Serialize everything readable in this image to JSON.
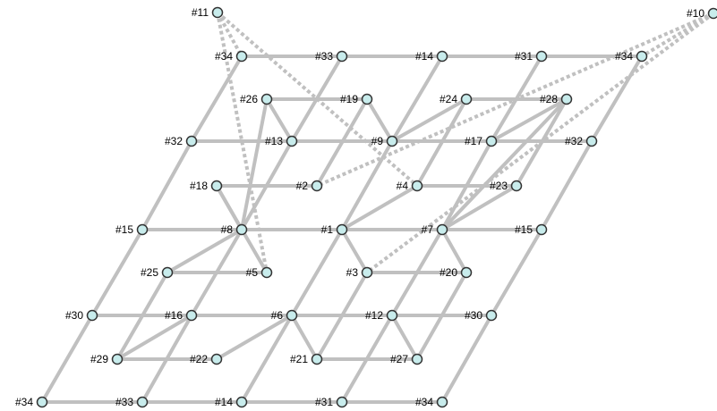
{
  "colors": {
    "edge": "#c0c0c0",
    "node_fill": "#c8ecec",
    "node_stroke": "#333333"
  },
  "nodes": [
    {
      "id": "a",
      "label": "#34"
    },
    {
      "id": "b",
      "label": "#33"
    },
    {
      "id": "c",
      "label": "#14"
    },
    {
      "id": "d",
      "label": "#31"
    },
    {
      "id": "e",
      "label": "#34"
    },
    {
      "id": "f",
      "label": "#30"
    },
    {
      "id": "g",
      "label": "#16"
    },
    {
      "id": "h",
      "label": "#6"
    },
    {
      "id": "i",
      "label": "#12"
    },
    {
      "id": "j",
      "label": "#30"
    },
    {
      "id": "k",
      "label": "#15"
    },
    {
      "id": "l",
      "label": "#8"
    },
    {
      "id": "m",
      "label": "#1"
    },
    {
      "id": "n",
      "label": "#7"
    },
    {
      "id": "o",
      "label": "#15"
    },
    {
      "id": "p",
      "label": "#32"
    },
    {
      "id": "q",
      "label": "#13"
    },
    {
      "id": "r",
      "label": "#9"
    },
    {
      "id": "s",
      "label": "#17"
    },
    {
      "id": "t",
      "label": "#32"
    },
    {
      "id": "u",
      "label": "#34"
    },
    {
      "id": "v",
      "label": "#33"
    },
    {
      "id": "w",
      "label": "#14"
    },
    {
      "id": "x",
      "label": "#31"
    },
    {
      "id": "y",
      "label": "#34"
    },
    {
      "id": "z",
      "label": "#29"
    },
    {
      "id": "aa",
      "label": "#22"
    },
    {
      "id": "ab",
      "label": "#21"
    },
    {
      "id": "ac",
      "label": "#27"
    },
    {
      "id": "ad",
      "label": "#25"
    },
    {
      "id": "ae",
      "label": "#5"
    },
    {
      "id": "af",
      "label": "#3"
    },
    {
      "id": "ag",
      "label": "#20"
    },
    {
      "id": "ah",
      "label": "#18"
    },
    {
      "id": "ai",
      "label": "#2"
    },
    {
      "id": "aj",
      "label": "#4"
    },
    {
      "id": "ak",
      "label": "#23"
    },
    {
      "id": "al",
      "label": "#26"
    },
    {
      "id": "am",
      "label": "#19"
    },
    {
      "id": "an",
      "label": "#24"
    },
    {
      "id": "ao",
      "label": "#28"
    },
    {
      "id": "ap",
      "label": "#11"
    },
    {
      "id": "aq",
      "label": "#10"
    }
  ],
  "edges": [
    [
      "a",
      "b"
    ],
    [
      "b",
      "c"
    ],
    [
      "c",
      "d"
    ],
    [
      "d",
      "e"
    ],
    [
      "f",
      "g"
    ],
    [
      "g",
      "h"
    ],
    [
      "h",
      "i"
    ],
    [
      "i",
      "j"
    ],
    [
      "k",
      "l"
    ],
    [
      "l",
      "m"
    ],
    [
      "m",
      "n"
    ],
    [
      "n",
      "o"
    ],
    [
      "p",
      "q"
    ],
    [
      "q",
      "r"
    ],
    [
      "r",
      "s"
    ],
    [
      "s",
      "t"
    ],
    [
      "u",
      "v"
    ],
    [
      "v",
      "w"
    ],
    [
      "w",
      "x"
    ],
    [
      "x",
      "y"
    ],
    [
      "a",
      "f"
    ],
    [
      "f",
      "k"
    ],
    [
      "k",
      "p"
    ],
    [
      "p",
      "u"
    ],
    [
      "b",
      "g"
    ],
    [
      "g",
      "l"
    ],
    [
      "l",
      "q"
    ],
    [
      "q",
      "v"
    ],
    [
      "c",
      "h"
    ],
    [
      "h",
      "m"
    ],
    [
      "m",
      "r"
    ],
    [
      "r",
      "w"
    ],
    [
      "d",
      "i"
    ],
    [
      "i",
      "n"
    ],
    [
      "n",
      "s"
    ],
    [
      "s",
      "x"
    ],
    [
      "e",
      "j"
    ],
    [
      "j",
      "o"
    ],
    [
      "o",
      "t"
    ],
    [
      "t",
      "y"
    ],
    [
      "z",
      "aa"
    ],
    [
      "ab",
      "ac"
    ],
    [
      "ad",
      "ae"
    ],
    [
      "af",
      "ag"
    ],
    [
      "ah",
      "ai"
    ],
    [
      "aj",
      "ak"
    ],
    [
      "al",
      "am"
    ],
    [
      "an",
      "ao"
    ],
    [
      "z",
      "g"
    ],
    [
      "z",
      "ad"
    ],
    [
      "aa",
      "h"
    ],
    [
      "h",
      "ab"
    ],
    [
      "ab",
      "af"
    ],
    [
      "i",
      "ac"
    ],
    [
      "ac",
      "ag"
    ],
    [
      "ad",
      "l"
    ],
    [
      "ae",
      "ah"
    ],
    [
      "af",
      "m"
    ],
    [
      "ag",
      "n"
    ],
    [
      "ah",
      "l"
    ],
    [
      "ai",
      "am"
    ],
    [
      "m",
      "aj"
    ],
    [
      "aj",
      "an"
    ],
    [
      "ak",
      "n"
    ],
    [
      "ak",
      "ao"
    ],
    [
      "al",
      "l"
    ],
    [
      "al",
      "q"
    ],
    [
      "am",
      "r"
    ],
    [
      "an",
      "r"
    ],
    [
      "ao",
      "s"
    ],
    [
      "ao",
      "n"
    ]
  ],
  "dashed_edges": [
    [
      "ap",
      "u"
    ],
    [
      "ap",
      "ae"
    ],
    [
      "ap",
      "aj"
    ],
    [
      "aq",
      "ai"
    ],
    [
      "aq",
      "af"
    ],
    [
      "aq",
      "y"
    ]
  ]
}
